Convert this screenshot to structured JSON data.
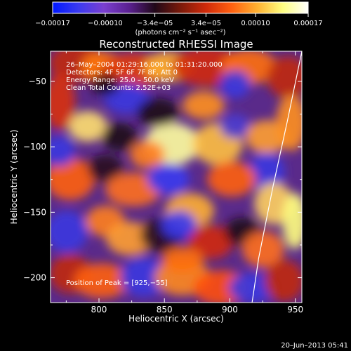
{
  "chart_data": {
    "type": "heatmap",
    "title": "Reconstructed RHESSI Image",
    "xlabel": "Heliocentric X (arcsec)",
    "ylabel": "Heliocentric Y (arcsec)",
    "xlim": [
      763,
      955
    ],
    "ylim": [
      -219,
      -27
    ],
    "x_ticks": [
      800,
      850,
      900,
      950
    ],
    "y_ticks": [
      -50,
      -100,
      -150,
      -200
    ],
    "x_tick_labels": [
      "800",
      "850",
      "900",
      "950"
    ],
    "y_tick_labels": [
      "−50",
      "−100",
      "−150",
      "−200"
    ],
    "colorbar": {
      "range": [
        -0.00017,
        0.00017
      ],
      "tick_values": [
        -0.00017,
        -0.0001,
        -3.4e-05,
        3.4e-05,
        0.0001,
        0.00017
      ],
      "tick_labels": [
        "−0.00017",
        "−0.00010",
        "−3.4e−05",
        "3.4e−05",
        "0.00010",
        "0.00017"
      ],
      "unit_label": "(photons cm⁻² s⁻¹ asec⁻²)",
      "colors": [
        "#0018ff",
        "#3a3af0",
        "#7a3fd0",
        "#5a2090",
        "#200818",
        "#7a1a0a",
        "#d02a0a",
        "#ff6010",
        "#ffb030",
        "#ffff80",
        "#ffffff"
      ]
    },
    "annotations": [
      "26–May–2004 01:29:16.000 to 01:31:20.000",
      "Detectors: 4F 5F 6F 7F 8F, Att 0",
      "Energy Range: 25.0 – 50.0 keV",
      "Clean     Total Counts: 2.52E+03"
    ],
    "peak_label": "Position of Peak = [925,−55]",
    "peak": [
      925,
      -55
    ],
    "limb_curve": [
      [
        955,
        -27
      ],
      [
        944,
        -80
      ],
      [
        933,
        -130
      ],
      [
        922,
        -185
      ],
      [
        917,
        -219
      ]
    ],
    "grid": false
  },
  "footer": {
    "date": "20–Jun–2013 05:41"
  }
}
